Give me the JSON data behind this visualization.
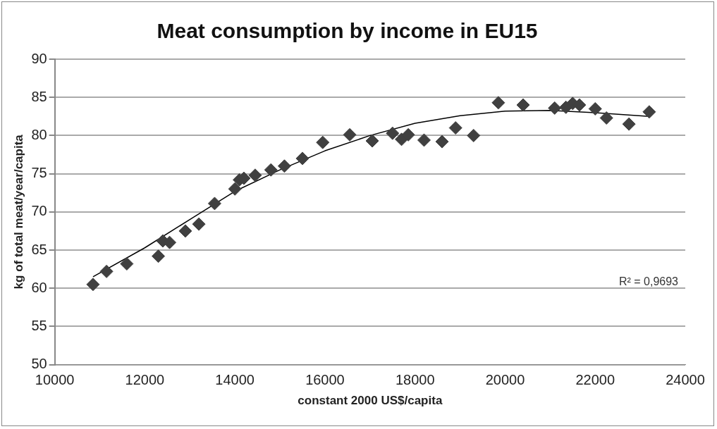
{
  "chart_data": {
    "type": "scatter",
    "title": "Meat consumption by income in EU15",
    "xlabel": "constant 2000 US$/capita",
    "ylabel": "kg of total meat/year/capita",
    "xlim": [
      10000,
      24000
    ],
    "xticks": [
      10000,
      12000,
      14000,
      16000,
      18000,
      20000,
      22000,
      24000
    ],
    "ylim": [
      50,
      90
    ],
    "yticks": [
      50,
      55,
      60,
      65,
      70,
      75,
      80,
      85,
      90
    ],
    "grid": "y",
    "legend": false,
    "marker": "diamond",
    "annotations": [
      "R² = 0,9693"
    ],
    "series": [
      {
        "color": "#404040",
        "x": [
          10850,
          11150,
          11600,
          12300,
          12400,
          12550,
          12900,
          13200,
          13550,
          14000,
          14100,
          14200,
          14450,
          14800,
          15100,
          15500,
          15950,
          16550,
          17050,
          17500,
          17700,
          17850,
          18200,
          18600,
          18900,
          19300,
          19850,
          20400,
          21100,
          21350,
          21500,
          21650,
          22000,
          22250,
          22750,
          23200
        ],
        "values": [
          60.5,
          62.2,
          63.2,
          64.2,
          66.2,
          66,
          67.5,
          68.4,
          71.1,
          73,
          74.2,
          74.4,
          74.8,
          75.5,
          76,
          77,
          79.1,
          80.1,
          79.3,
          80.3,
          79.5,
          80.1,
          79.4,
          79.2,
          81,
          80,
          84.3,
          84,
          83.6,
          83.7,
          84.2,
          84,
          83.5,
          82.3,
          81.5,
          83.1
        ]
      },
      {
        "type": "line",
        "color": "#000000",
        "marker": "none",
        "line_style": "solid",
        "x": [
          10850,
          12000,
          13000,
          14000,
          15000,
          16000,
          17000,
          18000,
          19000,
          20000,
          21000,
          22000,
          23200
        ],
        "values": [
          61.5,
          65.3,
          69,
          72.7,
          75.5,
          78,
          80,
          81.6,
          82.6,
          83.2,
          83.3,
          83,
          82.5
        ]
      }
    ]
  }
}
